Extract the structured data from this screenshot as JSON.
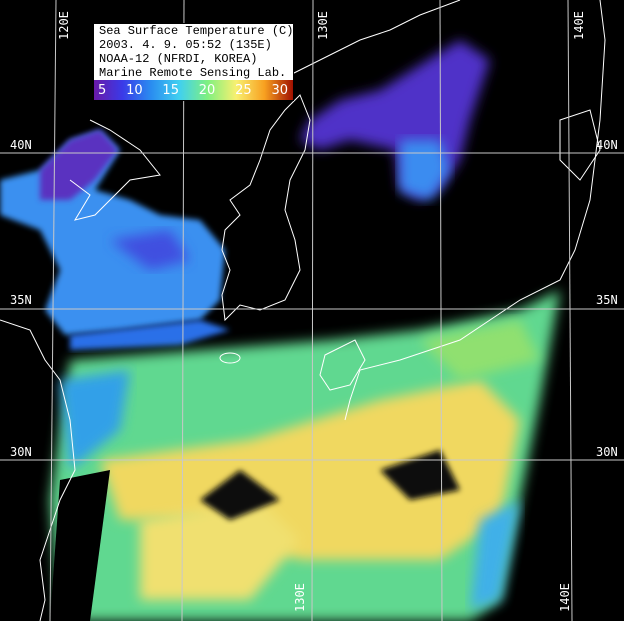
{
  "legend": {
    "title": "Sea Surface Temperature (C)",
    "datetime": "2003. 4. 9. 05:52 (135E)",
    "source": "NOAA-12 (NFRDI, KOREA)",
    "lab": "Marine Remote Sensing Lab.",
    "scale_ticks": [
      "5",
      "10",
      "15",
      "20",
      "25",
      "30"
    ],
    "scale_colors": [
      "#6a1aa8",
      "#3a3ae8",
      "#2a8cf0",
      "#40d0f0",
      "#80f080",
      "#f8f070",
      "#f8a020",
      "#a01000"
    ]
  },
  "grid": {
    "lon_labels_top": [
      "120E",
      "130E",
      "140E"
    ],
    "lon_labels_bottom": [
      "130E",
      "140E"
    ],
    "lat_labels_left": [
      "40N",
      "35N",
      "30N"
    ],
    "lat_labels_right": [
      "40N",
      "35N",
      "30N"
    ]
  }
}
